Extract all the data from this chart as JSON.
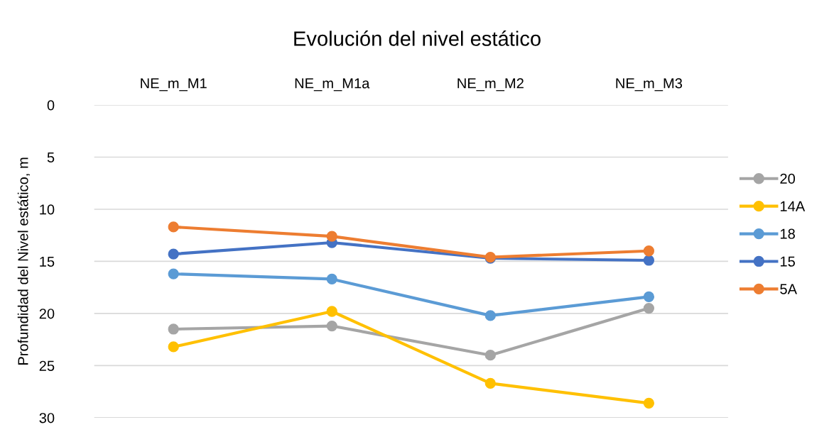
{
  "chart_data": {
    "type": "line",
    "title": "Evolución del nivel estático",
    "ylabel": "Profundidad del Nivel estático, m",
    "categories": [
      "NE_m_M1",
      "NE_m_M1a",
      "NE_m_M2",
      "NE_m_M3"
    ],
    "series": [
      {
        "name": "20",
        "color": "#a5a5a5",
        "values": [
          21.5,
          21.2,
          24.0,
          19.5
        ]
      },
      {
        "name": "14A",
        "color": "#ffc000",
        "values": [
          23.2,
          19.8,
          26.7,
          28.6
        ]
      },
      {
        "name": "18",
        "color": "#5b9bd5",
        "values": [
          16.2,
          16.7,
          20.2,
          18.4
        ]
      },
      {
        "name": "15",
        "color": "#4472c4",
        "values": [
          14.3,
          13.2,
          14.7,
          14.9
        ]
      },
      {
        "name": "5A",
        "color": "#ed7d31",
        "values": [
          11.7,
          12.6,
          14.6,
          14.0
        ]
      }
    ],
    "ylim": [
      30,
      0
    ],
    "yticks": [
      0,
      5,
      10,
      15,
      20,
      25,
      30
    ],
    "grid": "y",
    "legend": "right",
    "marker": "circle",
    "line_style": "solid"
  }
}
